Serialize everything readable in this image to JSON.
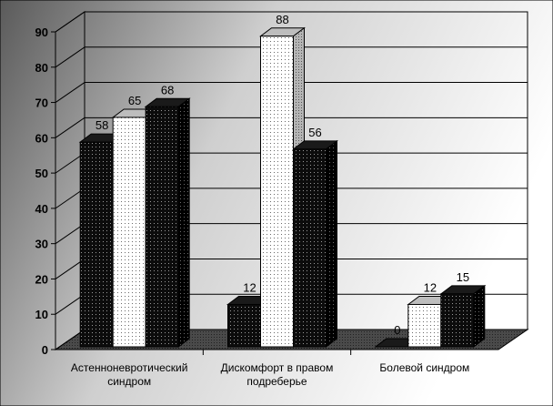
{
  "chart_data": {
    "type": "bar",
    "three_d": true,
    "categories": [
      [
        "Астенноневротический",
        "синдром"
      ],
      [
        "Дискомфорт в правом",
        "подреберье"
      ],
      [
        "Болевой синдром"
      ]
    ],
    "series": [
      {
        "values": [
          58,
          12,
          0
        ],
        "pattern": "dark-dotted"
      },
      {
        "values": [
          65,
          88,
          12
        ],
        "pattern": "light-dotted"
      },
      {
        "values": [
          68,
          56,
          15
        ],
        "pattern": "dark-dotted"
      }
    ],
    "ylim": [
      0,
      90
    ],
    "yticks": [
      0,
      10,
      20,
      30,
      40,
      50,
      60,
      70,
      80,
      90
    ],
    "grid": true,
    "legend": "none",
    "background": "gradient-dark-to-light"
  }
}
